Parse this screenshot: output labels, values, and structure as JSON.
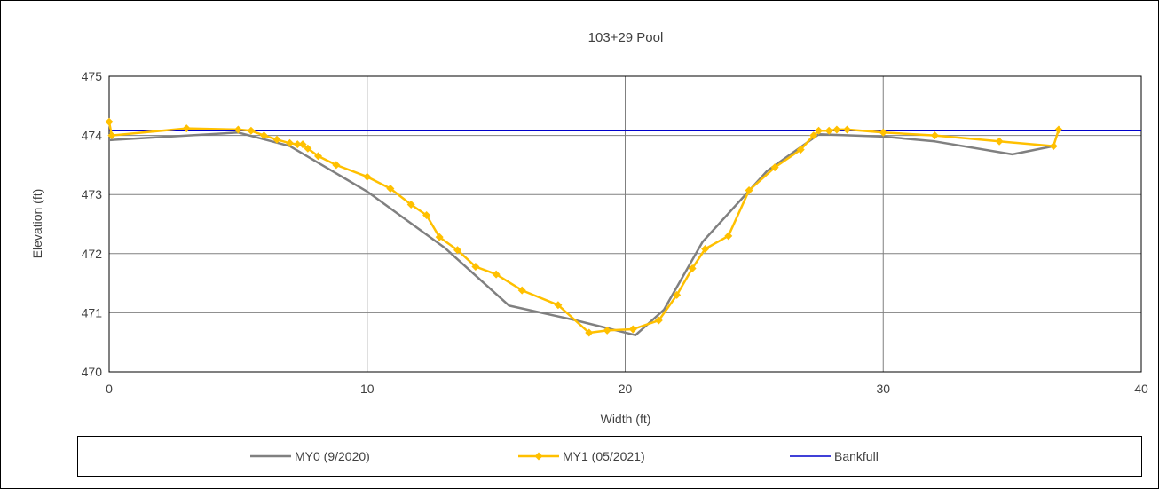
{
  "chart_data": {
    "type": "line",
    "title": "103+29 Pool",
    "xlabel": "Width (ft)",
    "ylabel": "Elevation (ft)",
    "xlim": [
      0,
      40
    ],
    "ylim": [
      470,
      475
    ],
    "x_ticks": [
      0,
      10,
      20,
      30,
      40
    ],
    "y_ticks": [
      470,
      471,
      472,
      473,
      474,
      475
    ],
    "x_tick_labels": [
      "0",
      "10",
      "20",
      "30",
      "40"
    ],
    "y_tick_labels": [
      "470",
      "471",
      "472",
      "473",
      "474",
      "475"
    ],
    "grid": true,
    "legend_position": "bottom",
    "series": [
      {
        "name": "MY0 (9/2020)",
        "color": "#808080",
        "marker": "none",
        "x": [
          0,
          5,
          7,
          10,
          13,
          15.5,
          18,
          20.4,
          21.5,
          23,
          25.5,
          27.5,
          30,
          32,
          35,
          36.6
        ],
        "y": [
          473.92,
          474.05,
          473.82,
          473.05,
          472.1,
          471.12,
          470.88,
          470.62,
          471.05,
          472.2,
          473.4,
          474.02,
          473.98,
          473.9,
          473.68,
          473.82
        ]
      },
      {
        "name": "MY1 (05/2021)",
        "color": "#FFC000",
        "marker": "diamond",
        "x": [
          0,
          0.1,
          3,
          5,
          5.5,
          6,
          6.5,
          7,
          7.3,
          7.5,
          7.7,
          8.1,
          8.8,
          10,
          10.9,
          11.7,
          12.3,
          12.8,
          13.5,
          14.2,
          15,
          16,
          17.4,
          18.6,
          19.3,
          20.3,
          21.3,
          22,
          22.6,
          23.1,
          24,
          24.8,
          25.8,
          26.8,
          27.3,
          27.5,
          27.9,
          28.2,
          28.6,
          30,
          32,
          34.5,
          36.6,
          36.8
        ],
        "y": [
          474.23,
          474,
          474.12,
          474.1,
          474.08,
          474,
          473.93,
          473.87,
          473.85,
          473.85,
          473.78,
          473.65,
          473.5,
          473.3,
          473.1,
          472.83,
          472.65,
          472.28,
          472.06,
          471.78,
          471.65,
          471.38,
          471.13,
          470.66,
          470.7,
          470.72,
          470.87,
          471.3,
          471.75,
          472.08,
          472.3,
          473.07,
          473.46,
          473.76,
          474,
          474.08,
          474.08,
          474.1,
          474.1,
          474.05,
          474,
          473.9,
          473.82,
          474.1
        ]
      },
      {
        "name": "Bankfull",
        "color": "#0000CC",
        "marker": "none",
        "x": [
          0,
          40
        ],
        "y": [
          474.08,
          474.08
        ]
      }
    ]
  }
}
